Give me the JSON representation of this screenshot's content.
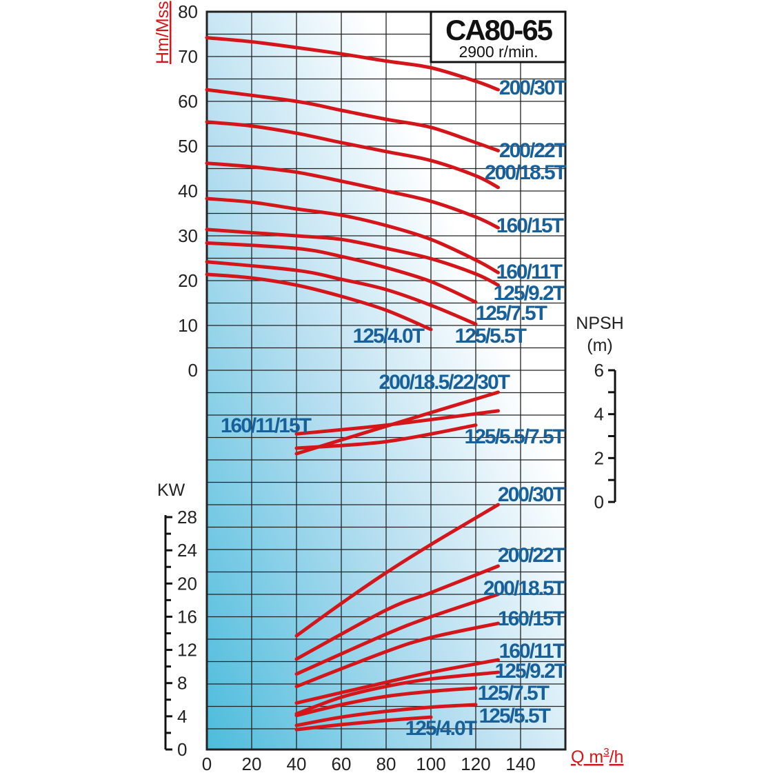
{
  "chart_data": [
    {
      "type": "line",
      "title": "CA80-65",
      "subtitle": "2900 r/min.",
      "panel": "head",
      "xlabel": "Q m3/h",
      "xlabel_main": "Q m",
      "xlabel_sup": "3",
      "xlabel_tail": "/h",
      "ylabel": "Hm/Mss",
      "xlim": [
        0,
        160
      ],
      "ylim": [
        0,
        80
      ],
      "xticks": [
        0,
        20,
        40,
        60,
        80,
        100,
        120,
        140
      ],
      "yticks": [
        80,
        70,
        60,
        50,
        40,
        30,
        20,
        10,
        0
      ],
      "grid": true,
      "series": [
        {
          "name": "200/30T",
          "x": [
            0,
            20,
            40,
            60,
            80,
            100,
            120,
            130
          ],
          "y": [
            74.2,
            73.3,
            72,
            70.6,
            69,
            67.5,
            64.5,
            62.6
          ]
        },
        {
          "name": "200/22T",
          "x": [
            0,
            40,
            60,
            80,
            100,
            120,
            130
          ],
          "y": [
            62.6,
            60,
            58,
            56,
            54.2,
            50.8,
            49
          ]
        },
        {
          "name": "200/18.5T",
          "x": [
            0,
            20,
            40,
            60,
            80,
            100,
            120,
            130
          ],
          "y": [
            55.4,
            54.5,
            52.9,
            50.8,
            48.8,
            46.8,
            43.4,
            40.8
          ]
        },
        {
          "name": "160/15T",
          "x": [
            0,
            20,
            40,
            60,
            80,
            100,
            120,
            130
          ],
          "y": [
            46.2,
            45.4,
            44.2,
            42.2,
            40,
            37.7,
            34.2,
            31.8
          ]
        },
        {
          "name": "160/11T",
          "x": [
            0,
            20,
            40,
            60,
            80,
            100,
            120,
            130
          ],
          "y": [
            38.3,
            37.5,
            36,
            34.6,
            32.3,
            29.2,
            24.6,
            21.8
          ]
        },
        {
          "name": "125/9.2T",
          "x": [
            0,
            40,
            60,
            80,
            100,
            120,
            130
          ],
          "y": [
            31.4,
            30,
            29.2,
            27.2,
            24.9,
            21.5,
            19
          ]
        },
        {
          "name": "125/7.5T",
          "x": [
            0,
            40,
            60,
            80,
            100,
            120
          ],
          "y": [
            28.4,
            27.2,
            25.4,
            22.9,
            19.8,
            15.2
          ]
        },
        {
          "name": "125/5.5T",
          "x": [
            0,
            40,
            60,
            80,
            100,
            120
          ],
          "y": [
            24.2,
            22.3,
            20.3,
            18,
            14.5,
            10.3
          ]
        },
        {
          "name": "125/4.0T",
          "x": [
            0,
            20,
            40,
            60,
            80,
            100
          ],
          "y": [
            21.4,
            20.6,
            19,
            16.5,
            13.4,
            9.1
          ]
        }
      ]
    },
    {
      "type": "line",
      "panel": "npsh",
      "ylabel": "NPSH",
      "ylabel_unit": "(m)",
      "ylim": [
        0,
        6
      ],
      "yticks": [
        6,
        4,
        2,
        0
      ],
      "series": [
        {
          "name": "200/18.5/22/30T",
          "x": [
            40,
            80,
            130
          ],
          "y": [
            2.2,
            3.45,
            5.0
          ]
        },
        {
          "name": "160/11/15T",
          "x": [
            40,
            80,
            130
          ],
          "y": [
            3.1,
            3.5,
            4.15
          ]
        },
        {
          "name": "125/5.5/7.5T",
          "x": [
            40,
            80,
            120
          ],
          "y": [
            2.45,
            2.75,
            3.5
          ]
        }
      ]
    },
    {
      "type": "line",
      "panel": "power",
      "ylabel": "KW",
      "ylim": [
        0,
        28
      ],
      "yticks": [
        28,
        24,
        20,
        16,
        12,
        8,
        4,
        0
      ],
      "series": [
        {
          "name": "200/30T",
          "x": [
            40,
            60,
            80,
            100,
            130
          ],
          "y": [
            13.7,
            17.6,
            21.3,
            24.7,
            29.5
          ]
        },
        {
          "name": "200/22T",
          "x": [
            40,
            80,
            100,
            130
          ],
          "y": [
            10.9,
            16.8,
            18.9,
            22.1
          ]
        },
        {
          "name": "200/18.5T",
          "x": [
            40,
            80,
            100,
            130
          ],
          "y": [
            9.1,
            13.9,
            16,
            18.7
          ]
        },
        {
          "name": "160/15T",
          "x": [
            40,
            80,
            100,
            130
          ],
          "y": [
            7.6,
            11.8,
            13.5,
            15.2
          ]
        },
        {
          "name": "160/11T",
          "x": [
            40,
            80,
            100,
            130
          ],
          "y": [
            5.6,
            8.1,
            9.3,
            10.8
          ]
        },
        {
          "name": "125/9.2T",
          "x": [
            40,
            60,
            80,
            100,
            130
          ],
          "y": [
            4.3,
            6.3,
            7.6,
            8.5,
            9.3
          ]
        },
        {
          "name": "125/7.5T",
          "x": [
            40,
            60,
            80,
            100,
            120
          ],
          "y": [
            4.1,
            5.4,
            6.4,
            7.0,
            7.4
          ]
        },
        {
          "name": "125/5.5T",
          "x": [
            40,
            60,
            80,
            100,
            120
          ],
          "y": [
            2.9,
            3.9,
            4.6,
            5.1,
            5.4
          ]
        },
        {
          "name": "125/4.0T",
          "x": [
            40,
            60,
            80,
            100
          ],
          "y": [
            2.4,
            3.0,
            3.5,
            3.9
          ]
        }
      ]
    }
  ],
  "colors": {
    "curve": "#d4161b",
    "label": "#17609a",
    "axis_title": "#d4161b"
  }
}
